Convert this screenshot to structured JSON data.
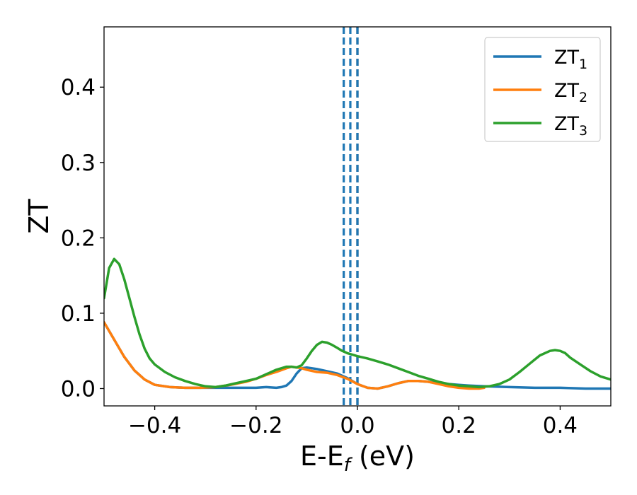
{
  "chart_data": {
    "type": "line",
    "xlabel": "E-E",
    "xlabel_sub": "f",
    "xlabel_unit": " (eV)",
    "ylabel": "ZT",
    "xlim": [
      -0.5,
      0.5
    ],
    "ylim": [
      -0.023,
      0.48
    ],
    "xticks": [
      -0.4,
      -0.2,
      0.0,
      0.2,
      0.4
    ],
    "xtick_labels": [
      "−0.4",
      "−0.2",
      "0.0",
      "0.2",
      "0.4"
    ],
    "yticks": [
      0.0,
      0.1,
      0.2,
      0.3,
      0.4
    ],
    "ytick_labels": [
      "0.0",
      "0.1",
      "0.2",
      "0.3",
      "0.4"
    ],
    "grid": false,
    "legend_position": "top-right",
    "vlines": [
      {
        "x": -0.027,
        "style": "dashed",
        "color": "#1f77b4"
      },
      {
        "x": -0.014,
        "style": "dashed",
        "color": "#1f77b4"
      },
      {
        "x": 0.0,
        "style": "dashed",
        "color": "#000000"
      },
      {
        "x": 0.0,
        "style": "dashed",
        "color": "#1f77b4"
      }
    ],
    "series": [
      {
        "name": "ZT",
        "name_sub": "1",
        "color": "#1f77b4",
        "x": [
          -0.5,
          -0.48,
          -0.46,
          -0.44,
          -0.42,
          -0.4,
          -0.37,
          -0.34,
          -0.31,
          -0.28,
          -0.25,
          -0.22,
          -0.2,
          -0.18,
          -0.16,
          -0.15,
          -0.14,
          -0.13,
          -0.12,
          -0.11,
          -0.1,
          -0.08,
          -0.06,
          -0.04,
          -0.02,
          0.0,
          0.02,
          0.04,
          0.06,
          0.08,
          0.1,
          0.12,
          0.14,
          0.16,
          0.18,
          0.2,
          0.22,
          0.25,
          0.3,
          0.35,
          0.4,
          0.45,
          0.5
        ],
        "y": [
          0.088,
          0.065,
          0.042,
          0.024,
          0.012,
          0.005,
          0.002,
          0.001,
          0.001,
          0.001,
          0.001,
          0.001,
          0.001,
          0.002,
          0.001,
          0.002,
          0.004,
          0.01,
          0.02,
          0.027,
          0.028,
          0.026,
          0.023,
          0.02,
          0.014,
          0.006,
          0.001,
          0.0,
          0.003,
          0.007,
          0.01,
          0.01,
          0.009,
          0.007,
          0.006,
          0.005,
          0.004,
          0.003,
          0.002,
          0.001,
          0.001,
          0.0,
          0.0
        ]
      },
      {
        "name": "ZT",
        "name_sub": "2",
        "color": "#ff7f0e",
        "x": [
          -0.5,
          -0.48,
          -0.46,
          -0.44,
          -0.42,
          -0.4,
          -0.37,
          -0.34,
          -0.31,
          -0.28,
          -0.25,
          -0.22,
          -0.2,
          -0.18,
          -0.16,
          -0.14,
          -0.13,
          -0.12,
          -0.11,
          -0.1,
          -0.08,
          -0.06,
          -0.04,
          -0.02,
          0.0,
          0.02,
          0.04,
          0.06,
          0.08,
          0.1,
          0.12,
          0.14,
          0.16,
          0.18,
          0.2,
          0.22,
          0.24,
          0.25
        ],
        "y": [
          0.088,
          0.065,
          0.042,
          0.024,
          0.012,
          0.005,
          0.002,
          0.001,
          0.001,
          0.002,
          0.005,
          0.009,
          0.013,
          0.018,
          0.022,
          0.027,
          0.029,
          0.028,
          0.027,
          0.025,
          0.022,
          0.021,
          0.018,
          0.013,
          0.006,
          0.001,
          0.0,
          0.003,
          0.007,
          0.01,
          0.01,
          0.009,
          0.006,
          0.003,
          0.001,
          0.0,
          0.0,
          0.001
        ]
      },
      {
        "name": "ZT",
        "name_sub": "3",
        "color": "#2ca02c",
        "x": [
          -0.5,
          -0.49,
          -0.48,
          -0.47,
          -0.46,
          -0.45,
          -0.44,
          -0.43,
          -0.42,
          -0.41,
          -0.4,
          -0.38,
          -0.36,
          -0.34,
          -0.32,
          -0.3,
          -0.28,
          -0.26,
          -0.24,
          -0.22,
          -0.2,
          -0.18,
          -0.16,
          -0.14,
          -0.13,
          -0.12,
          -0.11,
          -0.1,
          -0.09,
          -0.08,
          -0.07,
          -0.06,
          -0.05,
          -0.04,
          -0.03,
          -0.02,
          -0.01,
          0.0,
          0.02,
          0.04,
          0.06,
          0.08,
          0.1,
          0.12,
          0.14,
          0.16,
          0.18,
          0.2,
          0.22,
          0.24,
          0.26,
          0.28,
          0.3,
          0.32,
          0.34,
          0.36,
          0.38,
          0.39,
          0.4,
          0.41,
          0.42,
          0.44,
          0.46,
          0.48,
          0.5
        ],
        "y": [
          0.12,
          0.16,
          0.172,
          0.165,
          0.145,
          0.12,
          0.095,
          0.072,
          0.053,
          0.04,
          0.032,
          0.022,
          0.015,
          0.01,
          0.006,
          0.003,
          0.002,
          0.004,
          0.007,
          0.01,
          0.013,
          0.019,
          0.025,
          0.029,
          0.029,
          0.028,
          0.031,
          0.04,
          0.05,
          0.058,
          0.062,
          0.061,
          0.058,
          0.054,
          0.05,
          0.047,
          0.045,
          0.043,
          0.04,
          0.036,
          0.032,
          0.027,
          0.022,
          0.017,
          0.013,
          0.009,
          0.006,
          0.004,
          0.003,
          0.002,
          0.003,
          0.006,
          0.012,
          0.022,
          0.033,
          0.044,
          0.05,
          0.051,
          0.05,
          0.047,
          0.041,
          0.032,
          0.023,
          0.016,
          0.012
        ]
      }
    ]
  }
}
